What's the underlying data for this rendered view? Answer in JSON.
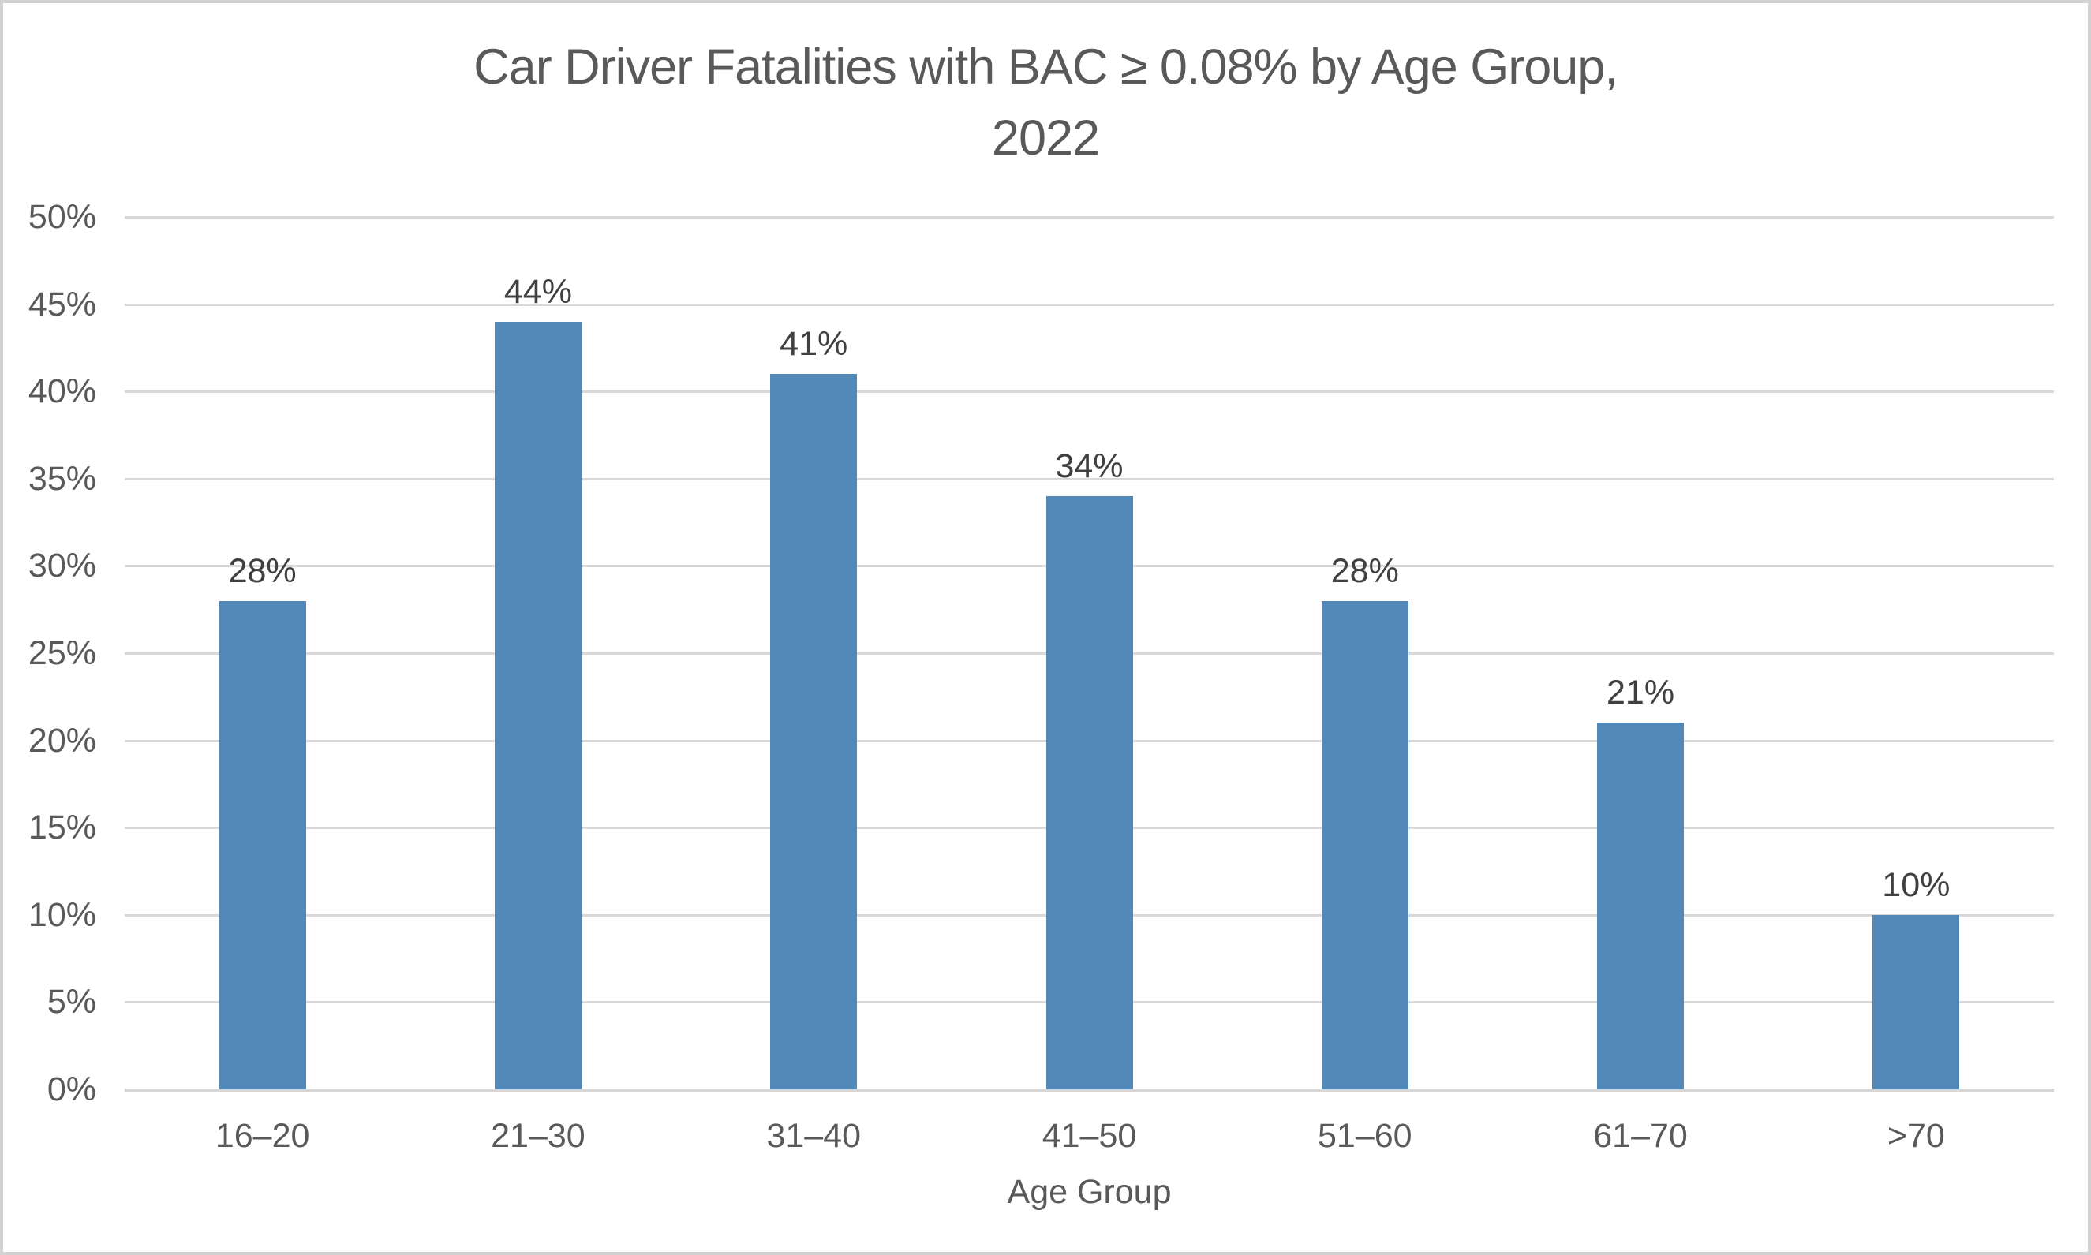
{
  "chart_data": {
    "type": "bar",
    "title": "Car Driver Fatalities with BAC ≥ 0.08% by Age Group, 2022",
    "title_lines": [
      "Car Driver Fatalities with BAC ≥ 0.08% by Age Group,",
      "2022"
    ],
    "xlabel": "Age Group",
    "ylabel": "",
    "categories": [
      "16–20",
      "21–30",
      "31–40",
      "41–50",
      "51–60",
      "61–70",
      ">70"
    ],
    "values": [
      28,
      44,
      41,
      34,
      28,
      21,
      10
    ],
    "data_labels": [
      "28%",
      "44%",
      "41%",
      "34%",
      "28%",
      "21%",
      "10%"
    ],
    "ylim": [
      0,
      50
    ],
    "yticks": [
      0,
      5,
      10,
      15,
      20,
      25,
      30,
      35,
      40,
      45,
      50
    ],
    "ytick_labels": [
      "0%",
      "5%",
      "10%",
      "15%",
      "20%",
      "25%",
      "30%",
      "35%",
      "40%",
      "45%",
      "50%"
    ],
    "grid": true,
    "legend": false,
    "colors": {
      "bar": "#5389B8",
      "gridline": "#D9D9D9",
      "axis_line": "#D6D6D6",
      "title_text": "#595959",
      "tick_text": "#595959",
      "data_label_text": "#404040",
      "border": "#D2D2D2",
      "background": "#FFFFFF"
    }
  }
}
